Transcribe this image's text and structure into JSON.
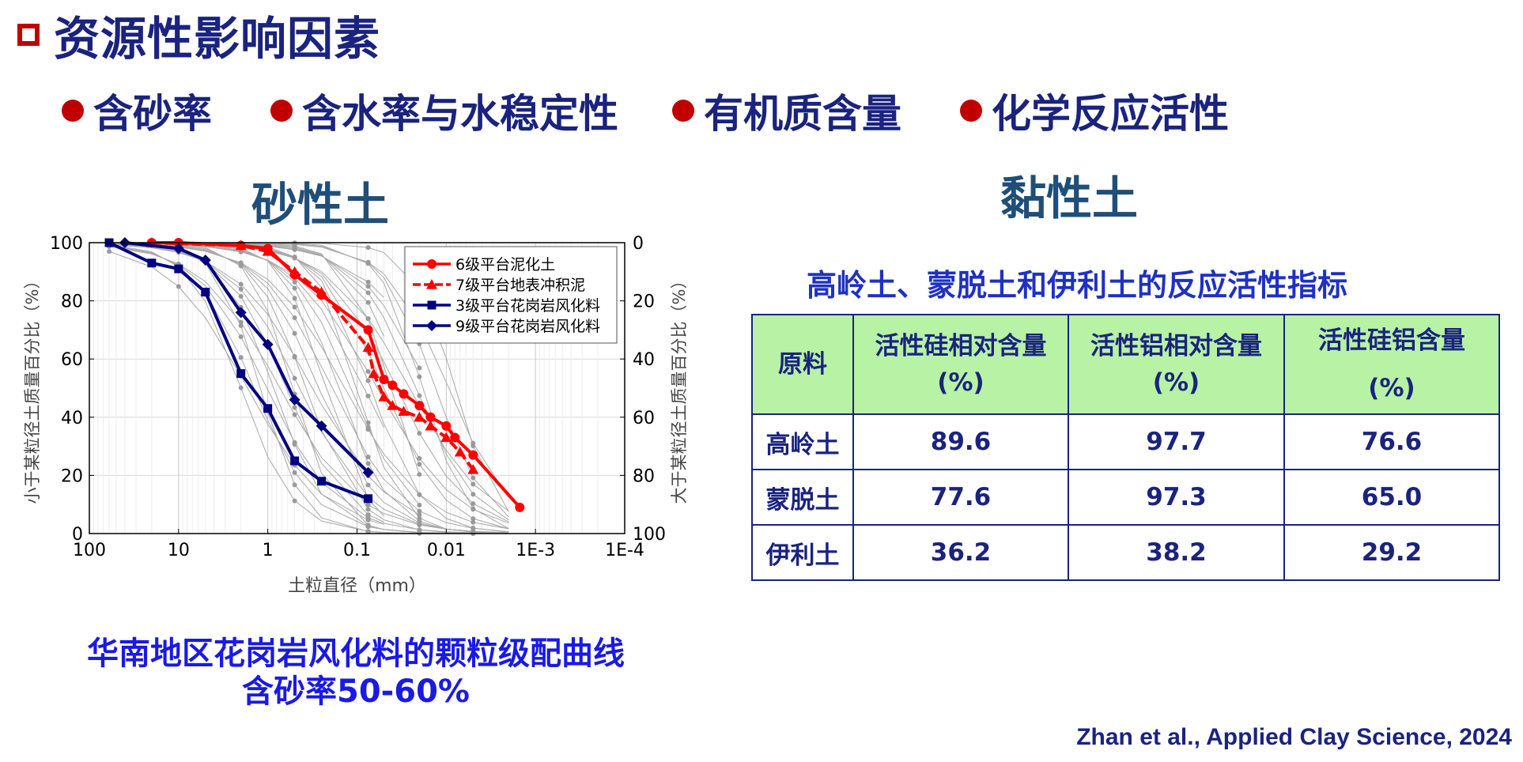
{
  "heading": {
    "text": "资源性影响因素"
  },
  "bullets": [
    "含砂率",
    "含水率与水稳定性",
    "有机质含量",
    "化学反应活性"
  ],
  "left_section": {
    "title": "砂性土"
  },
  "right_section": {
    "title": "黏性土"
  },
  "chart_data": {
    "type": "line",
    "xlabel": "土粒直径（mm）",
    "ylabel": "小于某粒径土质量百分比（%）",
    "ylabel_right": "大于某粒径土质量百分比（%）",
    "x_scale": "log",
    "x_reversed": true,
    "xlim": [
      100,
      0.0001
    ],
    "ylim": [
      0,
      100
    ],
    "x_ticks": [
      100,
      10,
      1,
      0.1,
      0.01,
      0.001,
      0.0001
    ],
    "x_tick_labels": [
      "100",
      "10",
      "1",
      "0.1",
      "0.01",
      "1E-3",
      "1E-4"
    ],
    "y_ticks": [
      0,
      20,
      40,
      60,
      80,
      100
    ],
    "y_tick_labels": [
      "0",
      "20",
      "40",
      "60",
      "80",
      "100"
    ],
    "y2_tick_labels": [
      "100",
      "80",
      "60",
      "40",
      "20",
      "0"
    ],
    "grid": true,
    "legend_position": "top-right",
    "series": [
      {
        "name": "6级平台泥化土",
        "color": "#ff0000",
        "marker": "circle",
        "x": [
          20,
          10,
          2,
          1,
          0.5,
          0.25,
          0.075,
          0.05,
          0.04,
          0.03,
          0.02,
          0.015,
          0.01,
          0.008,
          0.005,
          0.0015
        ],
        "y": [
          100,
          100,
          99,
          98,
          89,
          82,
          70,
          53,
          51,
          48,
          44,
          40,
          37,
          33,
          27,
          9
        ]
      },
      {
        "name": "7级平台地表冲积泥",
        "color": "#ff0000",
        "marker": "triangle",
        "x": [
          20,
          2,
          1,
          0.5,
          0.25,
          0.075,
          0.065,
          0.05,
          0.04,
          0.03,
          0.02,
          0.015,
          0.01,
          0.007,
          0.005
        ],
        "y": [
          100,
          99,
          97,
          90,
          83,
          64,
          55,
          47,
          44,
          42,
          40,
          37,
          33,
          28,
          22
        ]
      },
      {
        "name": "3级平台花岗岩风化料",
        "color": "#000080",
        "marker": "square",
        "x": [
          60,
          20,
          10,
          5,
          2,
          1,
          0.5,
          0.25,
          0.075
        ],
        "y": [
          100,
          93,
          91,
          83,
          55,
          43,
          25,
          18,
          12
        ]
      },
      {
        "name": "9级平台花岗岩风化料",
        "color": "#000080",
        "marker": "diamond",
        "x": [
          40,
          10,
          5,
          2,
          1,
          0.5,
          0.25,
          0.075
        ],
        "y": [
          100,
          98,
          94,
          76,
          65,
          46,
          37,
          21
        ]
      }
    ]
  },
  "caption": {
    "line1": "华南地区花岗岩风化料的颗粒级配曲线",
    "line2": "含砂率50-60%"
  },
  "table": {
    "title": "高岭土、蒙脱土和伊利土的反应活性指标",
    "headers": [
      {
        "line1": "原料",
        "line2": ""
      },
      {
        "line1": "活性硅相对含量",
        "line2": "(%)"
      },
      {
        "line1": "活性铝相对含量",
        "line2": "(%)"
      },
      {
        "line1": "活性硅铝含量",
        "line2": "(%)"
      }
    ],
    "rows": [
      [
        "高岭土",
        "89.6",
        "97.7",
        "76.6"
      ],
      [
        "蒙脱土",
        "77.6",
        "97.3",
        "65.0"
      ],
      [
        "伊利土",
        "36.2",
        "38.2",
        "29.2"
      ]
    ]
  },
  "citation": "Zhan et al., Applied Clay Science, 2024",
  "colors": {
    "heading": "#1a237e",
    "accent_red": "#c00000",
    "table_header_bg": "#b7f2a5",
    "caption_blue": "#1a1ae6"
  }
}
